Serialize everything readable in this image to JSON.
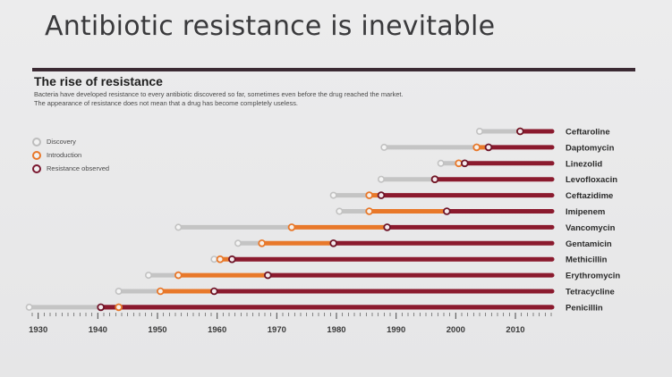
{
  "slide": {
    "title": "Antibiotic resistance is inevitable"
  },
  "figure": {
    "title": "The rise of resistance",
    "subtitle_line1": "Bacteria have developed resistance to every antibiotic discovered so far, sometimes even before the drug reached the market.",
    "subtitle_line2": "The appearance of resistance does not mean that a drug has become completely useless."
  },
  "legend": [
    {
      "label": "Discovery",
      "color": "#bdbdbd"
    },
    {
      "label": "Introduction",
      "color": "#e8782a"
    },
    {
      "label": "Resistance observed",
      "color": "#7a1830"
    }
  ],
  "chart_data": {
    "type": "timeline",
    "x_axis": {
      "range": [
        1929,
        2016
      ],
      "ticks": [
        1930,
        1940,
        1950,
        1960,
        1970,
        1980,
        1990,
        2000,
        2010
      ]
    },
    "colors": {
      "discovery": "#c4c4c4",
      "introduction": "#e8782a",
      "resistance": "#8b1a2e"
    },
    "series": [
      {
        "drug": "Ceftaroline",
        "discovery": 2004,
        "introduction": 2010.8,
        "resistance": 2010.8
      },
      {
        "drug": "Daptomycin",
        "discovery": 1988,
        "introduction": 2003.5,
        "resistance": 2005.5
      },
      {
        "drug": "Linezolid",
        "discovery": 1997.5,
        "introduction": 2000.5,
        "resistance": 2001.5
      },
      {
        "drug": "Levofloxacin",
        "discovery": 1987.5,
        "introduction": 1996.5,
        "resistance": 1996.5
      },
      {
        "drug": "Ceftazidime",
        "discovery": 1979.5,
        "introduction": 1985.5,
        "resistance": 1987.5
      },
      {
        "drug": "Imipenem",
        "discovery": 1980.5,
        "introduction": 1985.5,
        "resistance": 1998.5
      },
      {
        "drug": "Vancomycin",
        "discovery": 1953.5,
        "introduction": 1972.5,
        "resistance": 1988.5
      },
      {
        "drug": "Gentamicin",
        "discovery": 1963.5,
        "introduction": 1967.5,
        "resistance": 1979.5
      },
      {
        "drug": "Methicillin",
        "discovery": 1959.5,
        "introduction": 1960.5,
        "resistance": 1962.5
      },
      {
        "drug": "Erythromycin",
        "discovery": 1948.5,
        "introduction": 1953.5,
        "resistance": 1968.5
      },
      {
        "drug": "Tetracycline",
        "discovery": 1943.5,
        "introduction": 1950.5,
        "resistance": 1959.5
      },
      {
        "drug": "Penicillin",
        "discovery": 1928.5,
        "introduction": 1943.5,
        "resistance": 1940.5
      }
    ]
  }
}
